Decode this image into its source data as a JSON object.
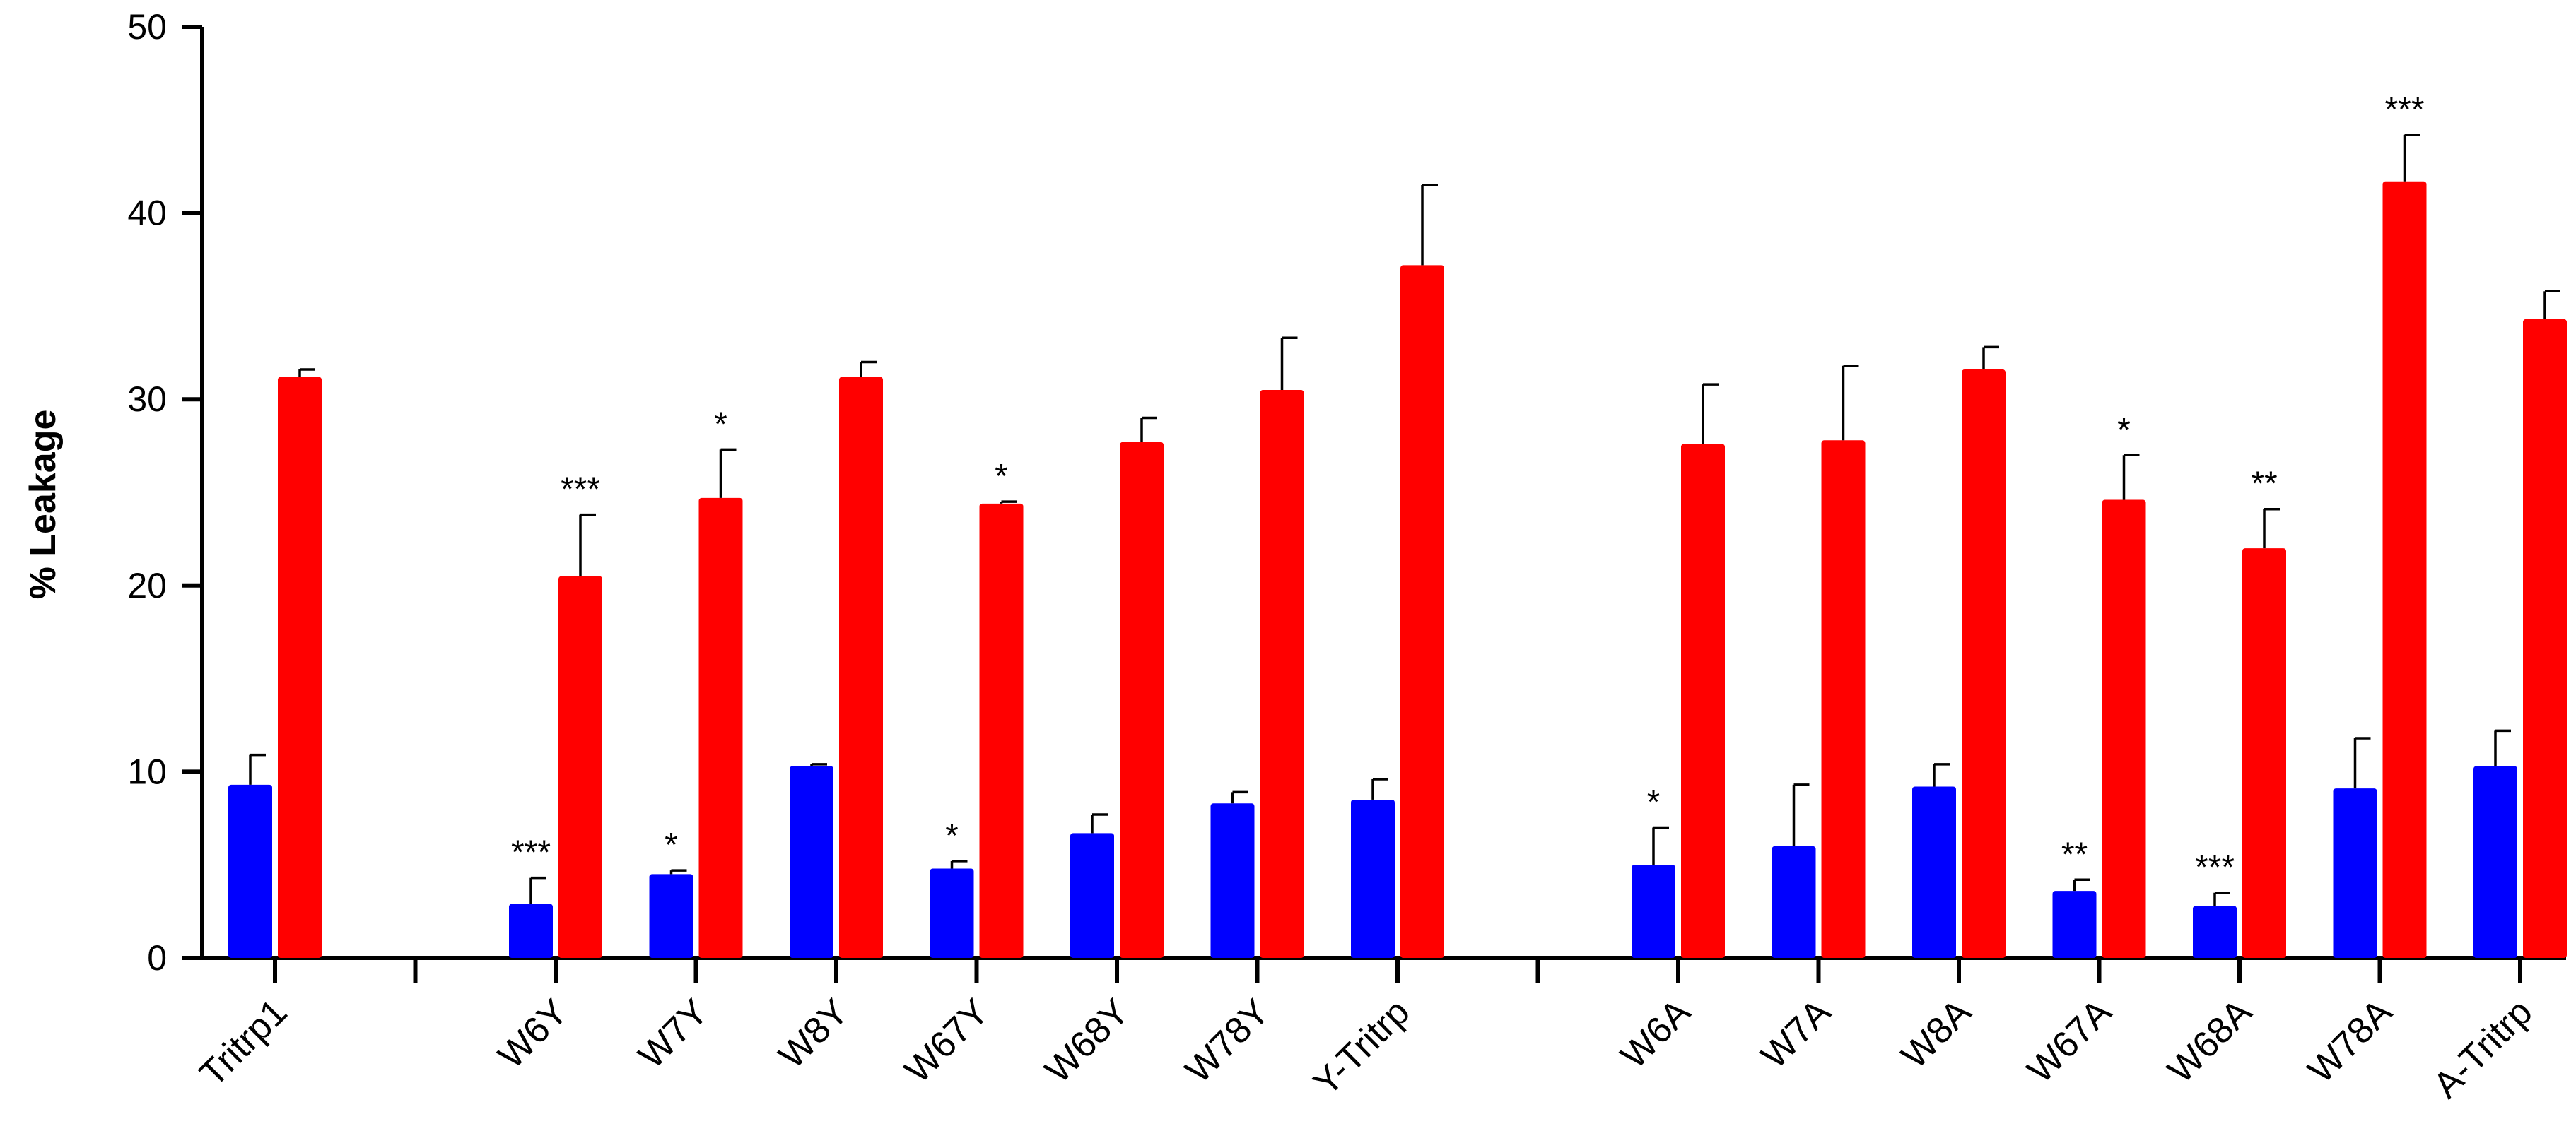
{
  "chart_data": {
    "type": "bar",
    "ylabel": "% Leakage",
    "xlabel": "",
    "ylim": [
      0,
      50
    ],
    "yticks": [
      0,
      10,
      20,
      30,
      40,
      50
    ],
    "grid": false,
    "legend": "none",
    "colors": {
      "series1": "#0000ff",
      "series2": "#ff0000",
      "axis": "#000000"
    },
    "categories": [
      "Tritrp1",
      "W6Y",
      "W7Y",
      "W8Y",
      "W67Y",
      "W68Y",
      "W78Y",
      "Y-Tritrp",
      "W6A",
      "W7A",
      "W8A",
      "W67A",
      "W68A",
      "W78A",
      "A-Tritrp"
    ],
    "group_breaks_after": [
      0,
      7
    ],
    "series": [
      {
        "values": [
          9.3,
          2.9,
          4.5,
          10.3,
          4.8,
          6.7,
          8.3,
          8.5,
          5.0,
          6.0,
          9.2,
          3.6,
          2.8,
          9.1,
          10.3
        ],
        "errors": [
          1.6,
          1.4,
          0.2,
          0.1,
          0.4,
          1.0,
          0.6,
          1.1,
          2.0,
          3.3,
          1.2,
          0.6,
          0.7,
          2.7,
          1.9
        ],
        "significance": [
          "",
          "***",
          "*",
          "",
          "*",
          "",
          "",
          "",
          "*",
          "",
          "",
          "**",
          "***",
          "",
          ""
        ]
      },
      {
        "values": [
          31.2,
          20.5,
          24.7,
          31.2,
          24.4,
          27.7,
          30.5,
          37.2,
          27.6,
          27.8,
          31.6,
          24.6,
          22.0,
          41.7,
          34.3
        ],
        "errors": [
          0.4,
          3.3,
          2.6,
          0.8,
          0.1,
          1.3,
          2.8,
          4.3,
          3.2,
          4.0,
          1.2,
          2.4,
          2.1,
          2.5,
          1.5
        ],
        "significance": [
          "",
          "***",
          "*",
          "",
          "*",
          "",
          "",
          "",
          "",
          "",
          "",
          "*",
          "**",
          "***",
          ""
        ]
      }
    ]
  }
}
